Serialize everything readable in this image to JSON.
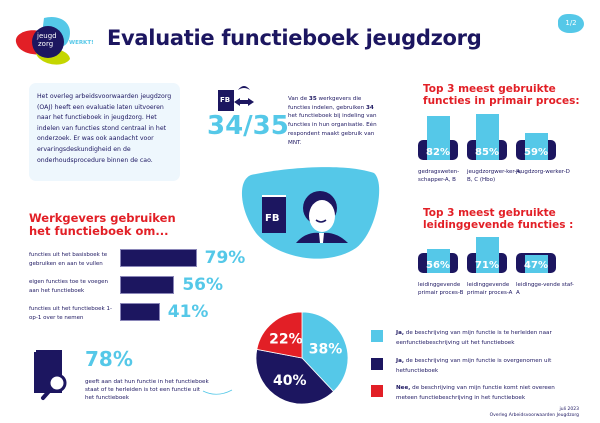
{
  "logo": {
    "text_line1": "jeugd",
    "text_line2": "zorg",
    "tagline": "WERKT!"
  },
  "header": {
    "title": "Evaluatie functieboek jeugdzorg",
    "page": "1/2"
  },
  "intro": "Het overleg arbeidsvoorwaarden jeugdzorg (OAJ) heeft een evaluatie laten uitvoeren naar het functieboek in jeugdzorg. Het indelen van functies stond centraal in het onderzoek. Er was ook aandacht voor ervaringsdeskundigheid en de onderhoudsprocedure binnen de cao.",
  "usage": {
    "icon_label": "FB",
    "stat": "34/35",
    "desc_parts": [
      "Van de ",
      "35",
      " werkgevers die functies indelen, gebruiken ",
      "34",
      " het functie­boek bij indeling van functies in hun organisatie. Eén respondent maakt gebruik van MNT."
    ]
  },
  "hero": {
    "icon_label": "FB"
  },
  "colors": {
    "navy": "#1c1660",
    "light_blue": "#55c8e8",
    "red": "#e21f26"
  },
  "chart_data": [
    {
      "type": "bar",
      "title": "Top 3 meest gebruikte functies in primair proces:",
      "categories": [
        "gedragsweten-schapper-A, B",
        "jeugdzorgwer-ker-A, B, C (Hbo)",
        "jeugdzorg-werker-D"
      ],
      "values": [
        82,
        85,
        59
      ],
      "value_labels": [
        "82%",
        "85%",
        "59%"
      ]
    },
    {
      "type": "bar",
      "title": "Top 3 meest gebruikte leidinggevende functies :",
      "categories": [
        "leidinggevende primair proces-B",
        "leidinggevende primair proces-A",
        "leidingge-vende staf-A"
      ],
      "values": [
        56,
        71,
        47
      ],
      "value_labels": [
        "56%",
        "71%",
        "47%"
      ]
    },
    {
      "type": "bar",
      "orientation": "horizontal",
      "title": "Werkgevers gebruiken het functieboek om...",
      "categories": [
        "functies uit het basisboek te gebruiken en aan te vullen",
        "eigen functies toe te voegen aan het functieboek",
        "functies uit het functieboek 1-op-1 over te nemen"
      ],
      "values": [
        79,
        56,
        41
      ],
      "value_labels": [
        "79%",
        "56%",
        "41%"
      ]
    },
    {
      "type": "pie",
      "slices": [
        {
          "bold": "Ja,",
          "label": " de beschrijving van mijn functie is te herleiden naar eenfunctiebeschrijving uit het functieboek",
          "value": 38,
          "value_label": "38%",
          "color": "#55c8e8"
        },
        {
          "bold": "Ja,",
          "label": " de beschrijving van mijn functie is overgenomen uit hetfunctieboek",
          "value": 40,
          "value_label": "40%",
          "color": "#1c1660"
        },
        {
          "bold": "Nee,",
          "label": " de beschrijving van mijn functie komt niet overeen meteen functiebeschrijving in het functieboek",
          "value": 22,
          "value_label": "22%",
          "color": "#e21f26"
        }
      ]
    }
  ],
  "traceable": {
    "stat": "78%",
    "text": "geeft aan dat hun functie in het functieboek staat of te herleiden is tot een functie uit het functieboek"
  },
  "footer": {
    "date": "juli 2023",
    "org": "Overleg Arbeidsvoorwaarden Jeugdzorg"
  }
}
